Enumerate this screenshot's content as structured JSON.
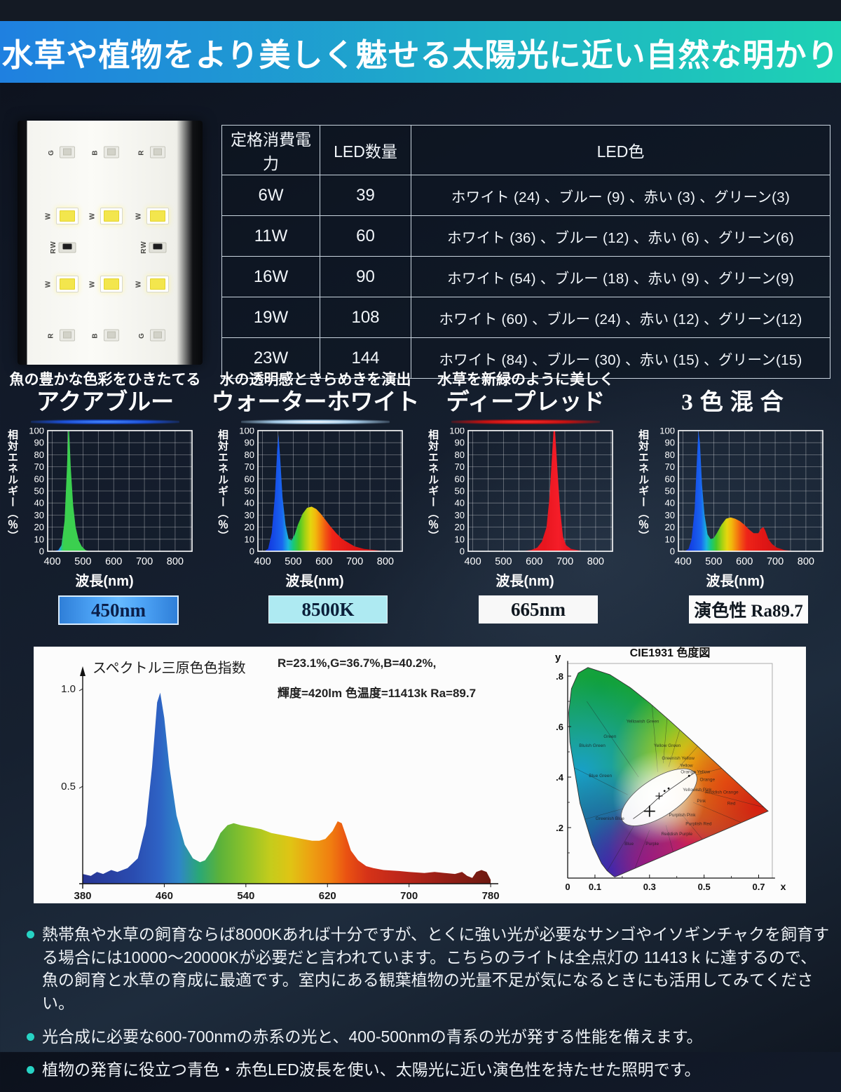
{
  "header": {
    "title": "水草や植物をより美しく魅せる太陽光に近い自然な明かり"
  },
  "colors": {
    "banner_gradient": [
      "#1f80e0",
      "#1ed2b4"
    ],
    "accent_teal": "#27d3c4",
    "table_border": "#c9d4de",
    "badge_blue": "#4fa6f8",
    "badge_cyan": "#aeeaf2"
  },
  "led_board": {
    "rows": [
      [
        "G",
        "B",
        "R"
      ],
      [
        "W",
        "W",
        "W"
      ],
      [
        "RW",
        null,
        "RW"
      ],
      [
        "W",
        "W",
        "W"
      ],
      [
        "R",
        "B",
        "G"
      ]
    ]
  },
  "spec_table": {
    "columns": [
      "定格消費電力",
      "LED数量",
      "LED色"
    ],
    "rows": [
      [
        "6W",
        "39",
        "ホワイト (24) 、ブルー (9) 、赤い (3) 、グリーン(3)"
      ],
      [
        "11W",
        "60",
        "ホワイト (36) 、ブルー (12) 、赤い (6) 、グリーン(6)"
      ],
      [
        "16W",
        "90",
        "ホワイト (54) 、ブルー (18) 、赤い (9) 、グリーン(9)"
      ],
      [
        "19W",
        "108",
        "ホワイト (60) 、ブルー (24) 、赤い (12) 、グリーン(12)"
      ],
      [
        "23W",
        "144",
        "ホワイト (84) 、ブルー (30) 、赤い (15) 、グリーン(15)"
      ]
    ]
  },
  "sections": [
    {
      "subtitle": "魚の豊かな色彩をひきたてる",
      "title": "アクアブルー",
      "badge": "450nm",
      "glow": "blue"
    },
    {
      "subtitle": "水の透明感ときらめきを演出",
      "title": "ウォーターホワイト",
      "badge": "8500K",
      "glow": "white"
    },
    {
      "subtitle": "水草を新緑のように美しく",
      "title": "ディープレッド",
      "badge": "665nm",
      "glow": "red"
    },
    {
      "subtitle": "",
      "title": "3色混合",
      "badge": "演色性 Ra89.7",
      "glow": "none"
    }
  ],
  "chart_data": [
    {
      "type": "area",
      "name": "aqua-blue-spectrum",
      "xlabel": "波長(nm)",
      "ylabel": "相対エネルギー（％）",
      "xlim": [
        385,
        855
      ],
      "ylim": [
        0,
        100
      ],
      "xticks": [
        400,
        500,
        600,
        700,
        800
      ],
      "ytick_step": 10,
      "grid": true,
      "points": [
        [
          400,
          0
        ],
        [
          420,
          1
        ],
        [
          430,
          5
        ],
        [
          440,
          25
        ],
        [
          448,
          70
        ],
        [
          452,
          100
        ],
        [
          455,
          100
        ],
        [
          460,
          70
        ],
        [
          468,
          38
        ],
        [
          476,
          20
        ],
        [
          486,
          9
        ],
        [
          496,
          4
        ],
        [
          508,
          1
        ],
        [
          520,
          0
        ]
      ],
      "gradient": [
        {
          "at": 390,
          "color": "#0a2fd0"
        },
        {
          "at": 445,
          "color": "#1255f0"
        },
        {
          "at": 462,
          "color": "#1a7af5"
        },
        {
          "at": 482,
          "color": "#22a8e8"
        },
        {
          "at": 505,
          "color": "#27c77f"
        },
        {
          "at": 530,
          "color": "#3bd04f"
        }
      ]
    },
    {
      "type": "area",
      "name": "water-white-spectrum",
      "xlabel": "波長(nm)",
      "ylabel": "相対エネルギー（％）",
      "xlim": [
        385,
        855
      ],
      "ylim": [
        0,
        100
      ],
      "xticks": [
        400,
        500,
        600,
        700,
        800
      ],
      "ytick_step": 10,
      "grid": true,
      "points": [
        [
          405,
          0
        ],
        [
          418,
          2
        ],
        [
          430,
          15
        ],
        [
          440,
          45
        ],
        [
          448,
          85
        ],
        [
          452,
          97
        ],
        [
          458,
          75
        ],
        [
          465,
          45
        ],
        [
          475,
          22
        ],
        [
          485,
          10
        ],
        [
          495,
          9
        ],
        [
          505,
          14
        ],
        [
          515,
          22
        ],
        [
          530,
          31
        ],
        [
          545,
          36
        ],
        [
          560,
          37
        ],
        [
          575,
          35
        ],
        [
          590,
          31
        ],
        [
          605,
          26
        ],
        [
          620,
          21
        ],
        [
          640,
          15
        ],
        [
          660,
          10
        ],
        [
          680,
          7
        ],
        [
          700,
          4
        ],
        [
          730,
          2
        ],
        [
          765,
          1
        ],
        [
          800,
          0
        ]
      ],
      "gradient": [
        {
          "at": 400,
          "color": "#1238e0"
        },
        {
          "at": 455,
          "color": "#1a66f0"
        },
        {
          "at": 478,
          "color": "#19b4e0"
        },
        {
          "at": 498,
          "color": "#17c87a"
        },
        {
          "at": 520,
          "color": "#46c828"
        },
        {
          "at": 545,
          "color": "#a6d213"
        },
        {
          "at": 565,
          "color": "#e4d60e"
        },
        {
          "at": 585,
          "color": "#f2b70d"
        },
        {
          "at": 605,
          "color": "#f4860e"
        },
        {
          "at": 625,
          "color": "#f25313"
        },
        {
          "at": 650,
          "color": "#ee2418"
        },
        {
          "at": 720,
          "color": "#e01616"
        },
        {
          "at": 800,
          "color": "#cc1212"
        }
      ]
    },
    {
      "type": "area",
      "name": "deep-red-spectrum",
      "xlabel": "波長(nm)",
      "ylabel": "相対エネルギー（％）",
      "xlim": [
        385,
        855
      ],
      "ylim": [
        0,
        100
      ],
      "xticks": [
        400,
        500,
        600,
        700,
        800
      ],
      "ytick_step": 10,
      "grid": true,
      "points": [
        [
          560,
          0
        ],
        [
          590,
          1
        ],
        [
          610,
          3
        ],
        [
          625,
          8
        ],
        [
          640,
          20
        ],
        [
          650,
          45
        ],
        [
          658,
          80
        ],
        [
          663,
          100
        ],
        [
          668,
          100
        ],
        [
          675,
          70
        ],
        [
          684,
          35
        ],
        [
          694,
          12
        ],
        [
          704,
          5
        ],
        [
          720,
          2
        ],
        [
          740,
          1
        ],
        [
          760,
          0
        ]
      ],
      "gradient": [
        {
          "at": 560,
          "color": "#e8161f"
        },
        {
          "at": 665,
          "color": "#f51d28"
        },
        {
          "at": 780,
          "color": "#d81220"
        }
      ]
    },
    {
      "type": "area",
      "name": "three-color-mix-spectrum",
      "xlabel": "波長(nm)",
      "ylabel": "相対エネルギー（％）",
      "xlim": [
        385,
        855
      ],
      "ylim": [
        0,
        100
      ],
      "xticks": [
        400,
        500,
        600,
        700,
        800
      ],
      "ytick_step": 10,
      "grid": true,
      "points": [
        [
          405,
          0
        ],
        [
          418,
          2
        ],
        [
          428,
          10
        ],
        [
          438,
          35
        ],
        [
          445,
          75
        ],
        [
          450,
          100
        ],
        [
          455,
          90
        ],
        [
          462,
          55
        ],
        [
          470,
          30
        ],
        [
          480,
          14
        ],
        [
          490,
          10
        ],
        [
          500,
          11
        ],
        [
          510,
          15
        ],
        [
          525,
          22
        ],
        [
          540,
          27
        ],
        [
          555,
          28
        ],
        [
          570,
          27
        ],
        [
          585,
          25
        ],
        [
          600,
          22
        ],
        [
          615,
          18
        ],
        [
          630,
          15
        ],
        [
          645,
          15
        ],
        [
          655,
          19
        ],
        [
          662,
          20
        ],
        [
          668,
          17
        ],
        [
          678,
          10
        ],
        [
          690,
          6
        ],
        [
          705,
          3
        ],
        [
          730,
          1
        ],
        [
          765,
          0
        ]
      ],
      "gradient": [
        {
          "at": 400,
          "color": "#1238e0"
        },
        {
          "at": 455,
          "color": "#1a66f0"
        },
        {
          "at": 478,
          "color": "#19b4e0"
        },
        {
          "at": 498,
          "color": "#17c87a"
        },
        {
          "at": 520,
          "color": "#46c828"
        },
        {
          "at": 545,
          "color": "#a6d213"
        },
        {
          "at": 565,
          "color": "#e4d60e"
        },
        {
          "at": 585,
          "color": "#f2b70d"
        },
        {
          "at": 605,
          "color": "#f4860e"
        },
        {
          "at": 625,
          "color": "#f25313"
        },
        {
          "at": 650,
          "color": "#ee2418"
        },
        {
          "at": 720,
          "color": "#e01616"
        },
        {
          "at": 800,
          "color": "#cc1212"
        }
      ]
    },
    {
      "type": "area",
      "name": "full-spectrum-rgb-index",
      "title": "スペクトル三原色色指数",
      "annotations": [
        "R=23.1%,G=36.7%,B=40.2%,",
        "輝度=420lm 色温度=11413k Ra=89.7"
      ],
      "xlim": [
        380,
        782
      ],
      "ylim": [
        0,
        1.06
      ],
      "xticks": [
        380,
        460,
        540,
        620,
        700,
        780
      ],
      "yticks": [
        0.5,
        1.0
      ],
      "ytick_labels": [
        "0.5",
        "1.0"
      ],
      "grid": false,
      "points": [
        [
          380,
          0.05
        ],
        [
          388,
          0.04
        ],
        [
          394,
          0.06
        ],
        [
          400,
          0.05
        ],
        [
          408,
          0.07
        ],
        [
          414,
          0.06
        ],
        [
          424,
          0.08
        ],
        [
          434,
          0.13
        ],
        [
          442,
          0.3
        ],
        [
          448,
          0.6
        ],
        [
          453,
          0.93
        ],
        [
          456,
          0.98
        ],
        [
          460,
          0.85
        ],
        [
          465,
          0.6
        ],
        [
          472,
          0.35
        ],
        [
          480,
          0.2
        ],
        [
          488,
          0.13
        ],
        [
          495,
          0.11
        ],
        [
          500,
          0.12
        ],
        [
          508,
          0.18
        ],
        [
          515,
          0.26
        ],
        [
          522,
          0.3
        ],
        [
          528,
          0.31
        ],
        [
          535,
          0.3
        ],
        [
          545,
          0.29
        ],
        [
          555,
          0.28
        ],
        [
          565,
          0.26
        ],
        [
          575,
          0.25
        ],
        [
          585,
          0.24
        ],
        [
          595,
          0.23
        ],
        [
          605,
          0.22
        ],
        [
          612,
          0.22
        ],
        [
          618,
          0.23
        ],
        [
          625,
          0.27
        ],
        [
          630,
          0.32
        ],
        [
          634,
          0.31
        ],
        [
          638,
          0.25
        ],
        [
          643,
          0.17
        ],
        [
          650,
          0.12
        ],
        [
          658,
          0.09
        ],
        [
          665,
          0.08
        ],
        [
          675,
          0.07
        ],
        [
          690,
          0.065
        ],
        [
          700,
          0.06
        ],
        [
          715,
          0.055
        ],
        [
          725,
          0.06
        ],
        [
          735,
          0.055
        ],
        [
          745,
          0.05
        ],
        [
          752,
          0.06
        ],
        [
          757,
          0.04
        ],
        [
          762,
          0.03
        ],
        [
          766,
          0.06
        ],
        [
          771,
          0.07
        ],
        [
          776,
          0.06
        ],
        [
          780,
          0.02
        ]
      ],
      "gradient": [
        {
          "at": 380,
          "color": "#283593"
        },
        {
          "at": 430,
          "color": "#2a4cb0"
        },
        {
          "at": 455,
          "color": "#2e62c4"
        },
        {
          "at": 475,
          "color": "#2f86c8"
        },
        {
          "at": 495,
          "color": "#2aa875"
        },
        {
          "at": 515,
          "color": "#5cb23a"
        },
        {
          "at": 540,
          "color": "#8cc22a"
        },
        {
          "at": 565,
          "color": "#c4cc1c"
        },
        {
          "at": 585,
          "color": "#e0c414"
        },
        {
          "at": 605,
          "color": "#eda012"
        },
        {
          "at": 625,
          "color": "#f07d10"
        },
        {
          "at": 640,
          "color": "#ea5212"
        },
        {
          "at": 660,
          "color": "#d63318"
        },
        {
          "at": 690,
          "color": "#c0281a"
        },
        {
          "at": 730,
          "color": "#9c2017"
        },
        {
          "at": 780,
          "color": "#6e1a12"
        }
      ]
    },
    {
      "type": "chromaticity",
      "name": "cie1931-diagram",
      "title": "CIE1931 色度図",
      "xlabel": "x",
      "ylabel": "y",
      "xticks": [
        0,
        0.1,
        0.3,
        0.5,
        0.7
      ],
      "xtick_labels": [
        "0",
        "0.1",
        "0.3",
        "0.5",
        "0.7"
      ],
      "yticks": [
        0.2,
        0.4,
        0.6,
        0.8
      ],
      "ytick_labels": [
        ".2",
        ".4",
        ".6",
        ".8"
      ],
      "regions": [
        [
          "Green",
          0.155,
          0.555
        ],
        [
          "Yellowish Green",
          0.275,
          0.615
        ],
        [
          "Yellow Green",
          0.365,
          0.52
        ],
        [
          "Greenish Yellow",
          0.405,
          0.47
        ],
        [
          "Yellow",
          0.435,
          0.44
        ],
        [
          "Orange Yellow",
          0.468,
          0.415
        ],
        [
          "Orange",
          0.512,
          0.385
        ],
        [
          "Reddish Orange",
          0.565,
          0.335
        ],
        [
          "Red",
          0.6,
          0.29
        ],
        [
          "Yellowish Pink",
          0.475,
          0.345
        ],
        [
          "Pink",
          0.49,
          0.3
        ],
        [
          "Purplish Pink",
          0.42,
          0.245
        ],
        [
          "Purplish Red",
          0.48,
          0.21
        ],
        [
          "Reddish Purple",
          0.4,
          0.17
        ],
        [
          "Purple",
          0.31,
          0.13
        ],
        [
          "Blue",
          0.225,
          0.13
        ],
        [
          "Greenish Blue",
          0.155,
          0.23
        ],
        [
          "Blue Green",
          0.12,
          0.4
        ],
        [
          "Bluish Green",
          0.09,
          0.52
        ]
      ],
      "white_point_marker": "+"
    }
  ],
  "bullets": [
    "熱帯魚や水草の飼育ならば8000Kあれば十分ですが、とくに強い光が必要なサンゴやイソギンチャクを飼育する場合には10000〜20000Kが必要だと言われています。こちらのライトは全点灯の 11413 k に達するので、魚の飼育と水草の育成に最適です。室内にある観葉植物の光量不足が気になるときにも活用してみてください。",
    "光合成に必要な600-700nmの赤系の光と、400-500nmの青系の光が発する性能を備えます。",
    "植物の発育に役立つ青色・赤色LED波長を使い、太陽光に近い演色性を持たせた照明です。"
  ]
}
